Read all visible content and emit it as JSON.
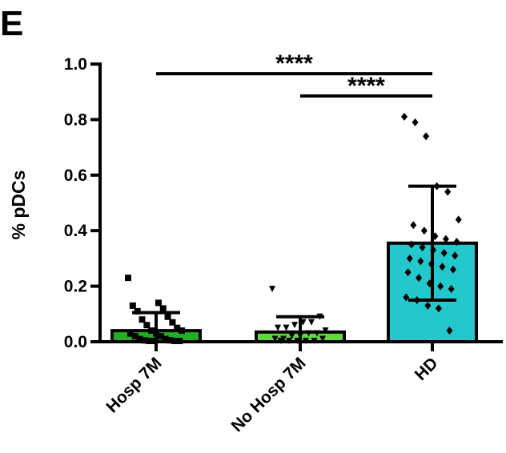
{
  "panel_label": "E",
  "chart_data": {
    "type": "bar",
    "ylabel": "% pDCs",
    "xlabel": "",
    "ylim": [
      0,
      1.0
    ],
    "y_ticks": [
      0.0,
      0.2,
      0.4,
      0.6,
      0.8,
      1.0
    ],
    "y_tick_labels": [
      "0.0",
      "0.2",
      "0.4",
      "0.6",
      "0.8",
      "1.0"
    ],
    "grid": false,
    "legend": "none",
    "categories": [
      "Hosp 7M",
      "No Hosp 7M",
      "HD"
    ],
    "values": [
      0.04,
      0.035,
      0.355
    ],
    "error": [
      0.065,
      0.055,
      0.205
    ],
    "colors": [
      "#22b022",
      "#5ddc3a",
      "#22c8cc"
    ],
    "marker_shapes": [
      "square",
      "triangle-down",
      "diamond"
    ],
    "points": [
      [
        0.23,
        0.14,
        0.13,
        0.12,
        0.11,
        0.09,
        0.08,
        0.07,
        0.06,
        0.05,
        0.04,
        0.04,
        0.03,
        0.03,
        0.02,
        0.02,
        0.01,
        0.01,
        0.005,
        0.005,
        0.0,
        0.0,
        0.0,
        0.0
      ],
      [
        0.19,
        0.09,
        0.07,
        0.07,
        0.06,
        0.05,
        0.05,
        0.04,
        0.03,
        0.03,
        0.02,
        0.02,
        0.01,
        0.01,
        0.01,
        0.0,
        0.0,
        0.0,
        0.0,
        0.0
      ],
      [
        0.81,
        0.79,
        0.74,
        0.56,
        0.54,
        0.44,
        0.42,
        0.4,
        0.38,
        0.37,
        0.36,
        0.35,
        0.34,
        0.33,
        0.32,
        0.31,
        0.3,
        0.29,
        0.28,
        0.27,
        0.26,
        0.25,
        0.23,
        0.21,
        0.2,
        0.19,
        0.16,
        0.15,
        0.13,
        0.12,
        0.04
      ]
    ],
    "significance": [
      {
        "from": 0,
        "to": 2,
        "y": 0.965,
        "label": "****"
      },
      {
        "from": 1,
        "to": 2,
        "y": 0.885,
        "label": "****"
      }
    ]
  }
}
